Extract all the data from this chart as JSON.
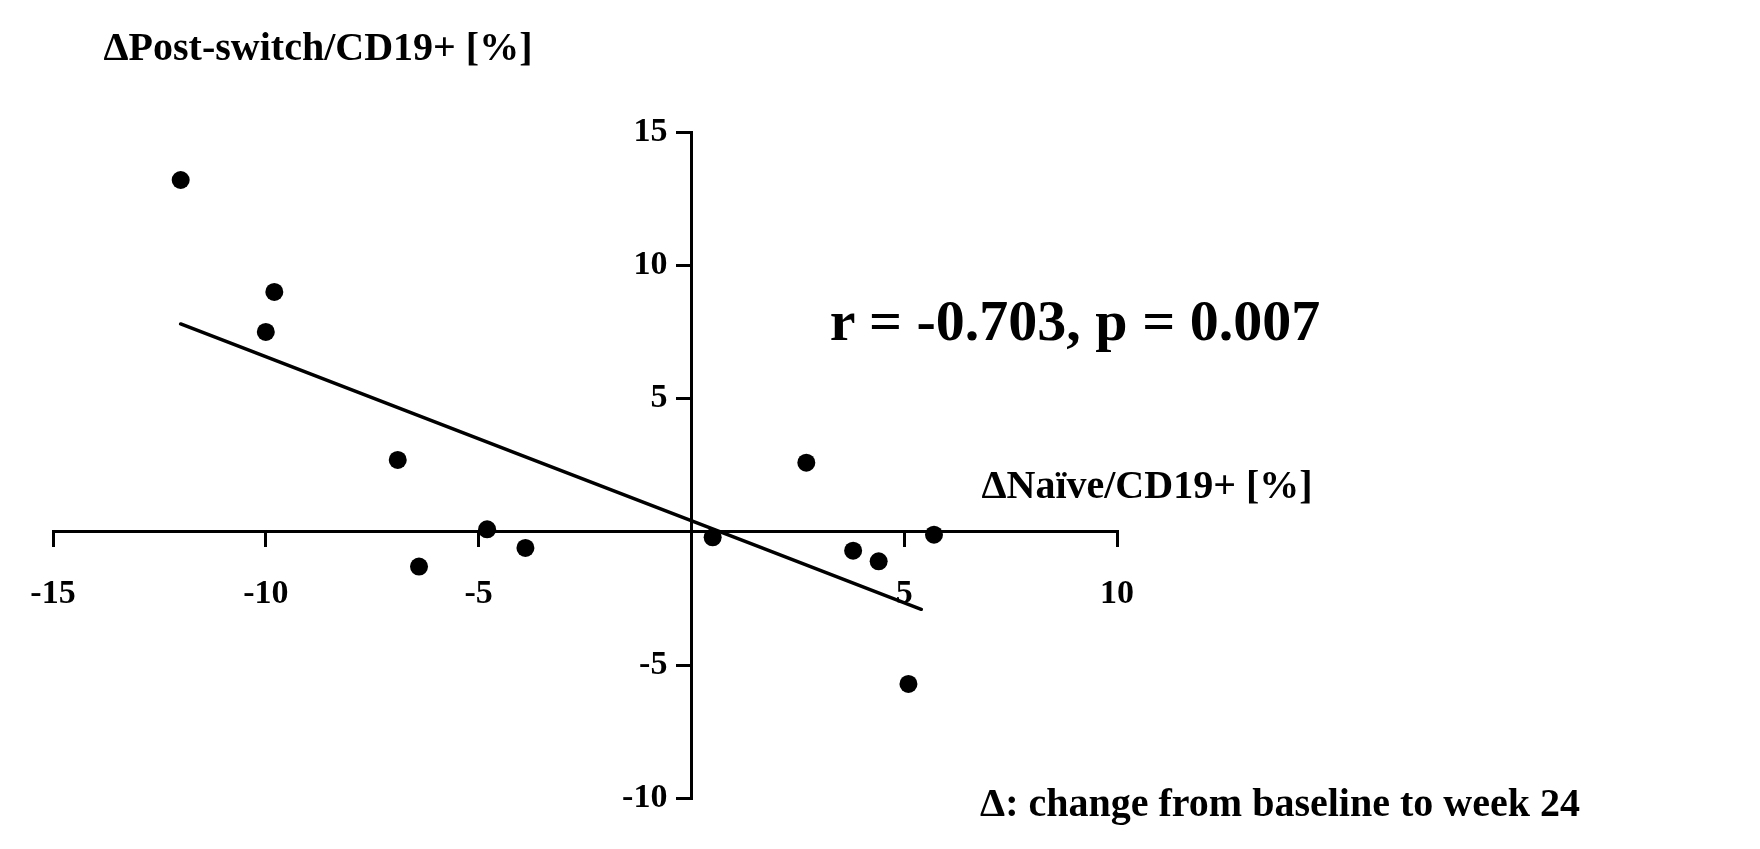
{
  "chart_data": {
    "type": "scatter",
    "xlabel": "ΔNaïve/CD19+ [%]",
    "ylabel": "ΔPost-switch/CD19+ [%]",
    "xlim": [
      -15,
      10
    ],
    "xticks": [
      -15,
      -10,
      -5,
      {
        "value": 0,
        "label": null
      },
      5,
      10
    ],
    "ylim": [
      -10,
      15
    ],
    "yticks": [
      -10,
      -5,
      {
        "value": 0,
        "label": null
      },
      5,
      10,
      15
    ],
    "grid": false,
    "legend": false,
    "marker": "circle",
    "series": [
      {
        "type": "scatter",
        "color": "#000000",
        "x": [
          -12.0,
          -9.8,
          -10.0,
          -6.9,
          -6.4,
          -4.8,
          -3.9,
          0.5,
          2.7,
          3.8,
          4.4,
          5.7,
          5.1
        ],
        "values": [
          13.2,
          9.0,
          7.5,
          2.7,
          -1.3,
          0.1,
          -0.6,
          -0.2,
          2.6,
          -0.7,
          -1.1,
          -0.1,
          -5.7
        ]
      },
      {
        "type": "line",
        "color": "#000000",
        "line_style": "solid",
        "marker": "none",
        "x": [
          -12.0,
          5.4
        ],
        "values": [
          7.8,
          -2.9
        ]
      }
    ],
    "annotations": [
      "r = -0.703, p = 0.007",
      "Δ: change from baseline to week 24"
    ]
  }
}
